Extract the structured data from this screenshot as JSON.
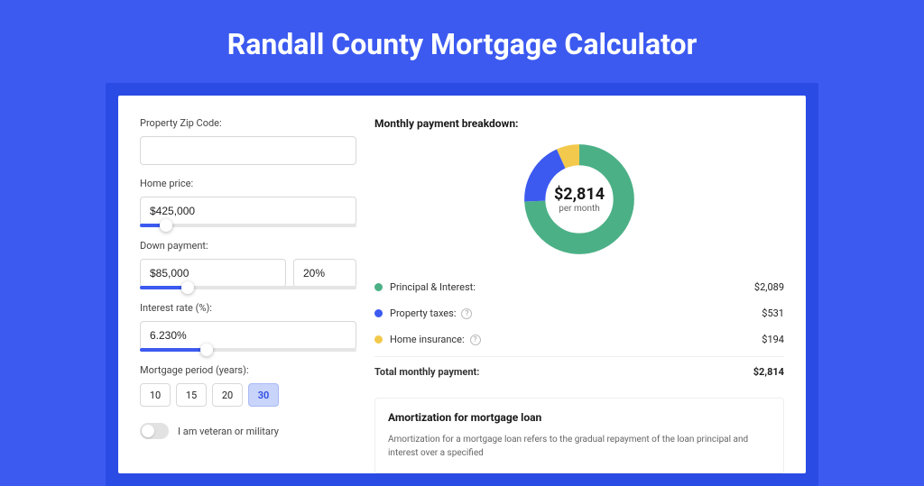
{
  "page": {
    "title": "Randall County Mortgage Calculator",
    "background_color": "#3c5af0",
    "frame_color": "#2a4be4",
    "card_color": "#ffffff"
  },
  "form": {
    "zip": {
      "label": "Property Zip Code:",
      "value": ""
    },
    "price": {
      "label": "Home price:",
      "value": "$425,000",
      "slider_pct": 12
    },
    "down": {
      "label": "Down payment:",
      "value": "$85,000",
      "pct": "20%",
      "slider_pct": 22
    },
    "rate": {
      "label": "Interest rate (%):",
      "value": "6.230%",
      "slider_pct": 31
    },
    "period": {
      "label": "Mortgage period (years):",
      "options": [
        "10",
        "15",
        "20",
        "30"
      ],
      "active_index": 3
    },
    "veteran": {
      "label": "I am veteran or military",
      "on": false
    }
  },
  "breakdown": {
    "title": "Monthly payment breakdown:",
    "donut": {
      "total_label": "$2,814",
      "sub_label": "per month",
      "slices": [
        {
          "key": "principal",
          "color": "#4cb087",
          "pct": 74.2
        },
        {
          "key": "taxes",
          "color": "#3c5af0",
          "pct": 18.9
        },
        {
          "key": "insurance",
          "color": "#f2c94c",
          "pct": 6.9
        }
      ],
      "ring_width": 18
    },
    "rows": [
      {
        "color": "#4cb087",
        "label": "Principal & Interest:",
        "value": "$2,089",
        "info": false
      },
      {
        "color": "#3c5af0",
        "label": "Property taxes:",
        "value": "$531",
        "info": true
      },
      {
        "color": "#f2c94c",
        "label": "Home insurance:",
        "value": "$194",
        "info": true
      }
    ],
    "total": {
      "label": "Total monthly payment:",
      "value": "$2,814"
    }
  },
  "amortization": {
    "title": "Amortization for mortgage loan",
    "text": "Amortization for a mortgage loan refers to the gradual repayment of the loan principal and interest over a specified"
  }
}
